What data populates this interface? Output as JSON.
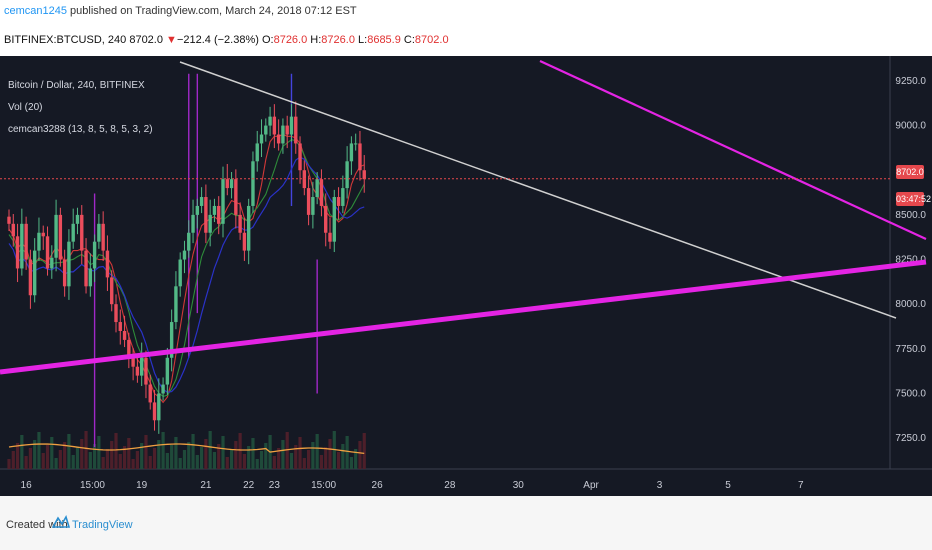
{
  "header": {
    "author": "cemcan1245",
    "published": " published on TradingView.com, March 24, 2018 07:12 EST"
  },
  "quote": {
    "symbol": "BITFINEX:BTCUSD, 240",
    "last": "8702.0",
    "arrow": "▼",
    "change": "−212.4 (−2.38%)",
    "o_label": "O:",
    "o": "8726.0",
    "h_label": "H:",
    "h": "8726.0",
    "l_label": "L:",
    "l": "8685.9",
    "c_label": "C:",
    "c": "8702.0"
  },
  "legend": {
    "title": "Bitcoin / Dollar, 240, BITFINEX",
    "vol": "Vol (20)",
    "indicator": "cemcan3288 (13, 8, 5, 8, 5, 3, 2)"
  },
  "badges": {
    "price": "8702.0",
    "countdown": "03:47:52"
  },
  "footer": {
    "created": "Created with",
    "brand": "TradingView"
  },
  "colors": {
    "background": "#151924",
    "up": "#53b987",
    "down": "#eb4d5c",
    "magenta": "#e424e4",
    "trend": "#d0d0d0"
  },
  "chart_data": {
    "type": "candlestick",
    "symbol": "BTCUSD",
    "ylim": [
      7150,
      9300
    ],
    "y_ticks": [
      7250,
      7500,
      7750,
      8000,
      8250,
      8500,
      9000,
      9250
    ],
    "x_ticks": [
      "16",
      "15:00",
      "19",
      "21",
      "22",
      "23",
      "15:00",
      "26",
      "28",
      "30",
      "Apr",
      "3",
      "5",
      "7"
    ],
    "x_tick_index": [
      4,
      19.5,
      31,
      46,
      56,
      62,
      73.5,
      86,
      103,
      119,
      136,
      152,
      168,
      185
    ],
    "last_price": 8702.0,
    "candles_close": [
      8450,
      8380,
      8200,
      8450,
      8250,
      8050,
      8300,
      8400,
      8380,
      8200,
      8260,
      8500,
      8250,
      8100,
      8350,
      8450,
      8500,
      8300,
      8100,
      8200,
      8350,
      8450,
      8300,
      8150,
      8000,
      7900,
      7850,
      7800,
      7700,
      7650,
      7600,
      7700,
      7550,
      7450,
      7350,
      7500,
      7550,
      7700,
      7900,
      8100,
      8250,
      8300,
      8400,
      8500,
      8550,
      8600,
      8400,
      8500,
      8550,
      8450,
      8700,
      8650,
      8700,
      8500,
      8400,
      8300,
      8550,
      8800,
      8900,
      8950,
      9000,
      9050,
      8950,
      8900,
      9000,
      8950,
      9050,
      8900,
      8750,
      8650,
      8500,
      8600,
      8700,
      8550,
      8400,
      8350,
      8600,
      8550,
      8650,
      8800,
      8900,
      8900,
      8750,
      8700
    ]
  }
}
